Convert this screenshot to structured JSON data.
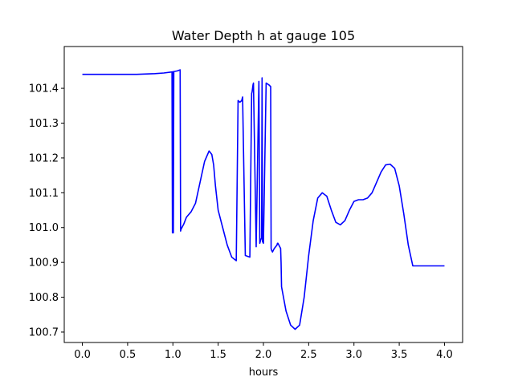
{
  "chart_data": {
    "type": "line",
    "title": "Water Depth h at gauge 105",
    "xlabel": "hours",
    "ylabel": "",
    "xlim": [
      -0.2,
      4.2
    ],
    "ylim": [
      100.67,
      101.52
    ],
    "xticks": [
      0.0,
      0.5,
      1.0,
      1.5,
      2.0,
      2.5,
      3.0,
      3.5,
      4.0
    ],
    "xtick_labels": [
      "0.0",
      "0.5",
      "1.0",
      "1.5",
      "2.0",
      "2.5",
      "3.0",
      "3.5",
      "4.0"
    ],
    "yticks": [
      100.7,
      100.8,
      100.9,
      101.0,
      101.1,
      101.2,
      101.3,
      101.4
    ],
    "ytick_labels": [
      "100.7",
      "100.8",
      "100.9",
      "101.0",
      "101.1",
      "101.2",
      "101.3",
      "101.4"
    ],
    "grid": false,
    "series": [
      {
        "color": "#0000ff",
        "x": [
          0.0,
          0.3,
          0.6,
          0.8,
          0.9,
          0.99,
          0.995,
          1.0,
          1.005,
          1.01,
          1.05,
          1.07,
          1.08,
          1.085,
          1.09,
          1.12,
          1.15,
          1.2,
          1.25,
          1.3,
          1.35,
          1.4,
          1.43,
          1.45,
          1.47,
          1.5,
          1.55,
          1.6,
          1.65,
          1.7,
          1.72,
          1.74,
          1.76,
          1.765,
          1.77,
          1.8,
          1.85,
          1.87,
          1.875,
          1.88,
          1.885,
          1.89,
          1.92,
          1.95,
          1.96,
          1.965,
          1.97,
          1.98,
          1.985,
          1.99,
          2.0,
          2.03,
          2.06,
          2.08,
          2.085,
          2.09,
          2.1,
          2.12,
          2.15,
          2.155,
          2.16,
          2.19,
          2.195,
          2.2,
          2.25,
          2.3,
          2.35,
          2.4,
          2.45,
          2.5,
          2.55,
          2.6,
          2.65,
          2.7,
          2.75,
          2.8,
          2.85,
          2.9,
          2.95,
          3.0,
          3.05,
          3.1,
          3.15,
          3.2,
          3.25,
          3.3,
          3.35,
          3.4,
          3.45,
          3.5,
          3.55,
          3.6,
          3.65,
          3.7,
          3.75,
          3.8,
          3.85,
          3.9,
          3.95,
          4.0
        ],
        "y": [
          101.44,
          101.44,
          101.44,
          101.442,
          101.444,
          101.447,
          100.985,
          101.448,
          100.985,
          101.448,
          101.45,
          101.452,
          101.453,
          100.99,
          100.995,
          101.01,
          101.03,
          101.045,
          101.07,
          101.13,
          101.19,
          101.22,
          101.21,
          101.18,
          101.12,
          101.05,
          101.0,
          100.95,
          100.915,
          100.905,
          101.365,
          101.36,
          101.365,
          101.37,
          101.375,
          100.92,
          100.915,
          101.385,
          101.39,
          101.4,
          101.41,
          101.415,
          100.945,
          101.42,
          100.955,
          100.96,
          100.965,
          100.97,
          101.43,
          100.96,
          100.955,
          101.415,
          101.41,
          101.405,
          100.94,
          100.935,
          100.93,
          100.94,
          100.95,
          100.955,
          100.955,
          100.94,
          100.9,
          100.83,
          100.76,
          100.72,
          100.708,
          100.72,
          100.8,
          100.92,
          101.02,
          101.085,
          101.1,
          101.09,
          101.05,
          101.015,
          101.008,
          101.02,
          101.05,
          101.075,
          101.08,
          101.08,
          101.085,
          101.1,
          101.13,
          101.16,
          101.18,
          101.182,
          101.17,
          101.12,
          101.04,
          100.95,
          100.89,
          100.89,
          100.89,
          100.89,
          100.89,
          100.89,
          100.89,
          100.89
        ]
      }
    ]
  }
}
